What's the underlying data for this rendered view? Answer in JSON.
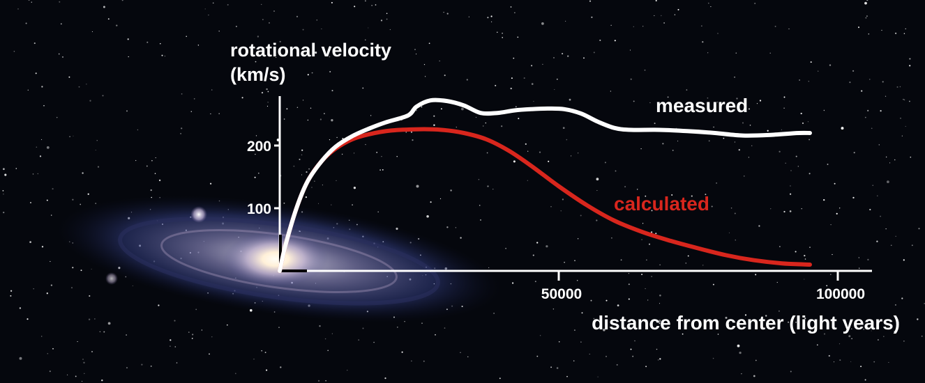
{
  "colors": {
    "background": "#05070d",
    "axis": "#ffffff",
    "measured": "#ffffff",
    "calculated": "#d8261d"
  },
  "chart_data": {
    "type": "line",
    "title": "",
    "ylabel": [
      "rotational velocity",
      "(km/s)"
    ],
    "xlabel": "distance from center (light years)",
    "xlim": [
      0,
      105000
    ],
    "ylim": [
      0,
      275
    ],
    "xticks": [
      {
        "value": 50000,
        "label": "50000"
      },
      {
        "value": 100000,
        "label": "100000"
      }
    ],
    "yticks": [
      {
        "value": 100,
        "label": "100"
      },
      {
        "value": 200,
        "label": "200"
      }
    ],
    "grid": false,
    "series": [
      {
        "name": "measured",
        "x": [
          0,
          1000,
          3000,
          5000,
          7500,
          10000,
          13000,
          16000,
          19000,
          23000,
          24500,
          27000,
          30000,
          33000,
          36000,
          39000,
          42000,
          45000,
          48000,
          51000,
          54000,
          57000,
          60000,
          63000,
          68000,
          73000,
          78000,
          83000,
          88000,
          93000,
          95000
        ],
        "y": [
          0,
          40,
          100,
          143,
          175,
          198,
          215,
          227,
          237,
          248,
          262,
          272,
          271,
          264,
          252,
          252,
          256,
          258,
          259,
          258,
          251,
          238,
          228,
          225,
          225,
          223,
          220,
          216,
          217,
          220,
          220
        ]
      },
      {
        "name": "calculated",
        "x": [
          0,
          1000,
          3000,
          5000,
          7500,
          10000,
          13000,
          16000,
          20000,
          25000,
          29000,
          33000,
          37000,
          41000,
          45000,
          50000,
          55000,
          60000,
          65000,
          70000,
          75000,
          80000,
          85000,
          90000,
          95000
        ],
        "y": [
          0,
          40,
          100,
          143,
          175,
          195,
          210,
          218,
          224,
          226,
          225,
          220,
          210,
          192,
          168,
          135,
          105,
          80,
          62,
          48,
          36,
          25,
          17,
          12,
          10
        ]
      }
    ]
  }
}
